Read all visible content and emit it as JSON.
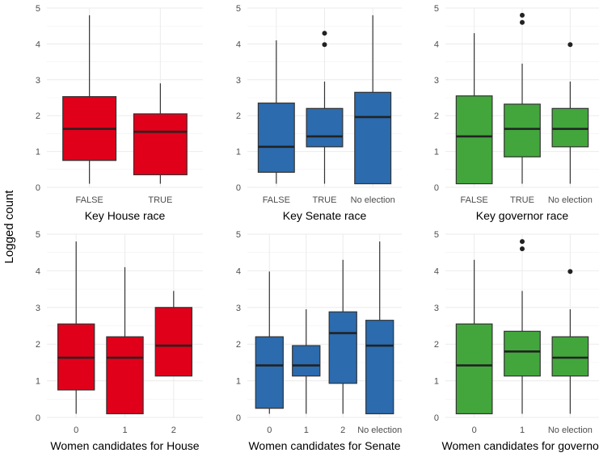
{
  "figure": {
    "ylabel": "Logged count"
  },
  "chart_data": [
    {
      "type": "box",
      "xlabel": "Key House race",
      "ylim": [
        0,
        5
      ],
      "yticks": [
        "0",
        "1",
        "2",
        "3",
        "4",
        "5"
      ],
      "color": "#E0001A",
      "categories": [
        "FALSE",
        "TRUE"
      ],
      "boxes": [
        {
          "min": 0.1,
          "q1": 0.75,
          "median": 1.63,
          "q3": 2.53,
          "max": 4.8,
          "outliers": []
        },
        {
          "min": 0.1,
          "q1": 0.35,
          "median": 1.55,
          "q3": 2.05,
          "max": 2.9,
          "outliers": []
        }
      ]
    },
    {
      "type": "box",
      "xlabel": "Key Senate race",
      "ylim": [
        0,
        5
      ],
      "yticks": [
        "0",
        "1",
        "2",
        "3",
        "4",
        "5"
      ],
      "color": "#2B6BAE",
      "categories": [
        "FALSE",
        "TRUE",
        "No election"
      ],
      "boxes": [
        {
          "min": 0.1,
          "q1": 0.42,
          "median": 1.13,
          "q3": 2.35,
          "max": 4.1,
          "outliers": []
        },
        {
          "min": 0.1,
          "q1": 1.13,
          "median": 1.42,
          "q3": 2.2,
          "max": 2.95,
          "outliers": [
            3.98,
            4.3
          ]
        },
        {
          "min": 0.1,
          "q1": 0.1,
          "median": 1.96,
          "q3": 2.65,
          "max": 4.8,
          "outliers": []
        }
      ]
    },
    {
      "type": "box",
      "xlabel": "Key governor race",
      "ylim": [
        0,
        5
      ],
      "yticks": [
        "0",
        "1",
        "2",
        "3",
        "4",
        "5"
      ],
      "color": "#42A63C",
      "categories": [
        "FALSE",
        "TRUE",
        "No election"
      ],
      "boxes": [
        {
          "min": 0.1,
          "q1": 0.1,
          "median": 1.42,
          "q3": 2.55,
          "max": 4.3,
          "outliers": []
        },
        {
          "min": 0.1,
          "q1": 0.85,
          "median": 1.63,
          "q3": 2.32,
          "max": 3.45,
          "outliers": [
            4.6,
            4.8
          ]
        },
        {
          "min": 0.1,
          "q1": 1.13,
          "median": 1.63,
          "q3": 2.2,
          "max": 2.95,
          "outliers": [
            3.98
          ]
        }
      ]
    },
    {
      "type": "box",
      "xlabel": "Women candidates for House",
      "ylim": [
        0,
        5
      ],
      "yticks": [
        "0",
        "1",
        "2",
        "3",
        "4",
        "5"
      ],
      "color": "#E0001A",
      "categories": [
        "0",
        "1",
        "2"
      ],
      "boxes": [
        {
          "min": 0.1,
          "q1": 0.75,
          "median": 1.63,
          "q3": 2.55,
          "max": 4.8,
          "outliers": []
        },
        {
          "min": 0.1,
          "q1": 0.1,
          "median": 1.63,
          "q3": 2.2,
          "max": 4.1,
          "outliers": []
        },
        {
          "min": 1.13,
          "q1": 1.13,
          "median": 1.96,
          "q3": 3.0,
          "max": 3.45,
          "outliers": []
        }
      ]
    },
    {
      "type": "box",
      "xlabel": "Women candidates for Senate",
      "ylim": [
        0,
        5
      ],
      "yticks": [
        "0",
        "1",
        "2",
        "3",
        "4",
        "5"
      ],
      "color": "#2B6BAE",
      "categories": [
        "0",
        "1",
        "2",
        "No election"
      ],
      "boxes": [
        {
          "min": 0.1,
          "q1": 0.25,
          "median": 1.42,
          "q3": 2.2,
          "max": 3.98,
          "outliers": []
        },
        {
          "min": 0.1,
          "q1": 1.13,
          "median": 1.42,
          "q3": 1.96,
          "max": 2.95,
          "outliers": []
        },
        {
          "min": 0.1,
          "q1": 0.93,
          "median": 2.3,
          "q3": 2.88,
          "max": 4.3,
          "outliers": []
        },
        {
          "min": 0.1,
          "q1": 0.1,
          "median": 1.96,
          "q3": 2.65,
          "max": 4.8,
          "outliers": []
        }
      ]
    },
    {
      "type": "box",
      "xlabel": "Women candidates for governor",
      "ylim": [
        0,
        5
      ],
      "yticks": [
        "0",
        "1",
        "2",
        "3",
        "4",
        "5"
      ],
      "color": "#42A63C",
      "categories": [
        "0",
        "1",
        "No election"
      ],
      "boxes": [
        {
          "min": 0.1,
          "q1": 0.1,
          "median": 1.42,
          "q3": 2.55,
          "max": 4.3,
          "outliers": []
        },
        {
          "min": 0.1,
          "q1": 1.13,
          "median": 1.8,
          "q3": 2.35,
          "max": 3.45,
          "outliers": [
            4.6,
            4.8
          ]
        },
        {
          "min": 0.1,
          "q1": 1.13,
          "median": 1.63,
          "q3": 2.2,
          "max": 2.95,
          "outliers": [
            3.98
          ]
        }
      ]
    }
  ]
}
